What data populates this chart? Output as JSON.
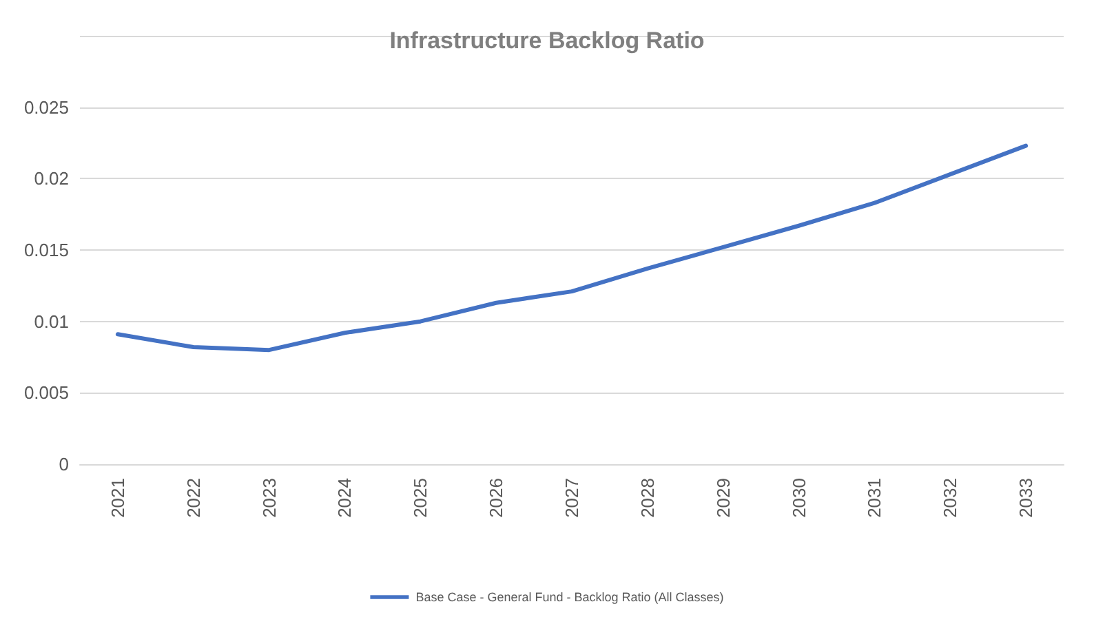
{
  "chart_data": {
    "type": "line",
    "title": "Infrastructure Backlog Ratio",
    "categories": [
      "2021",
      "2022",
      "2023",
      "2024",
      "2025",
      "2026",
      "2027",
      "2028",
      "2029",
      "2030",
      "2031",
      "2032",
      "2033"
    ],
    "series": [
      {
        "name": "Base Case - General Fund - Backlog Ratio (All Classes)",
        "color": "#4472c4",
        "values": [
          0.0091,
          0.0082,
          0.008,
          0.0092,
          0.01,
          0.0113,
          0.0121,
          0.0137,
          0.0152,
          0.0167,
          0.0183,
          0.0203,
          0.0223
        ]
      }
    ],
    "ylim": [
      0,
      0.03
    ],
    "yticks": [
      0,
      0.005,
      0.01,
      0.015,
      0.02,
      0.025,
      {
        "value": 0.03,
        "label": null
      }
    ],
    "grid": "y",
    "legend": "bottom",
    "marker": "none",
    "line_style": "solid"
  }
}
